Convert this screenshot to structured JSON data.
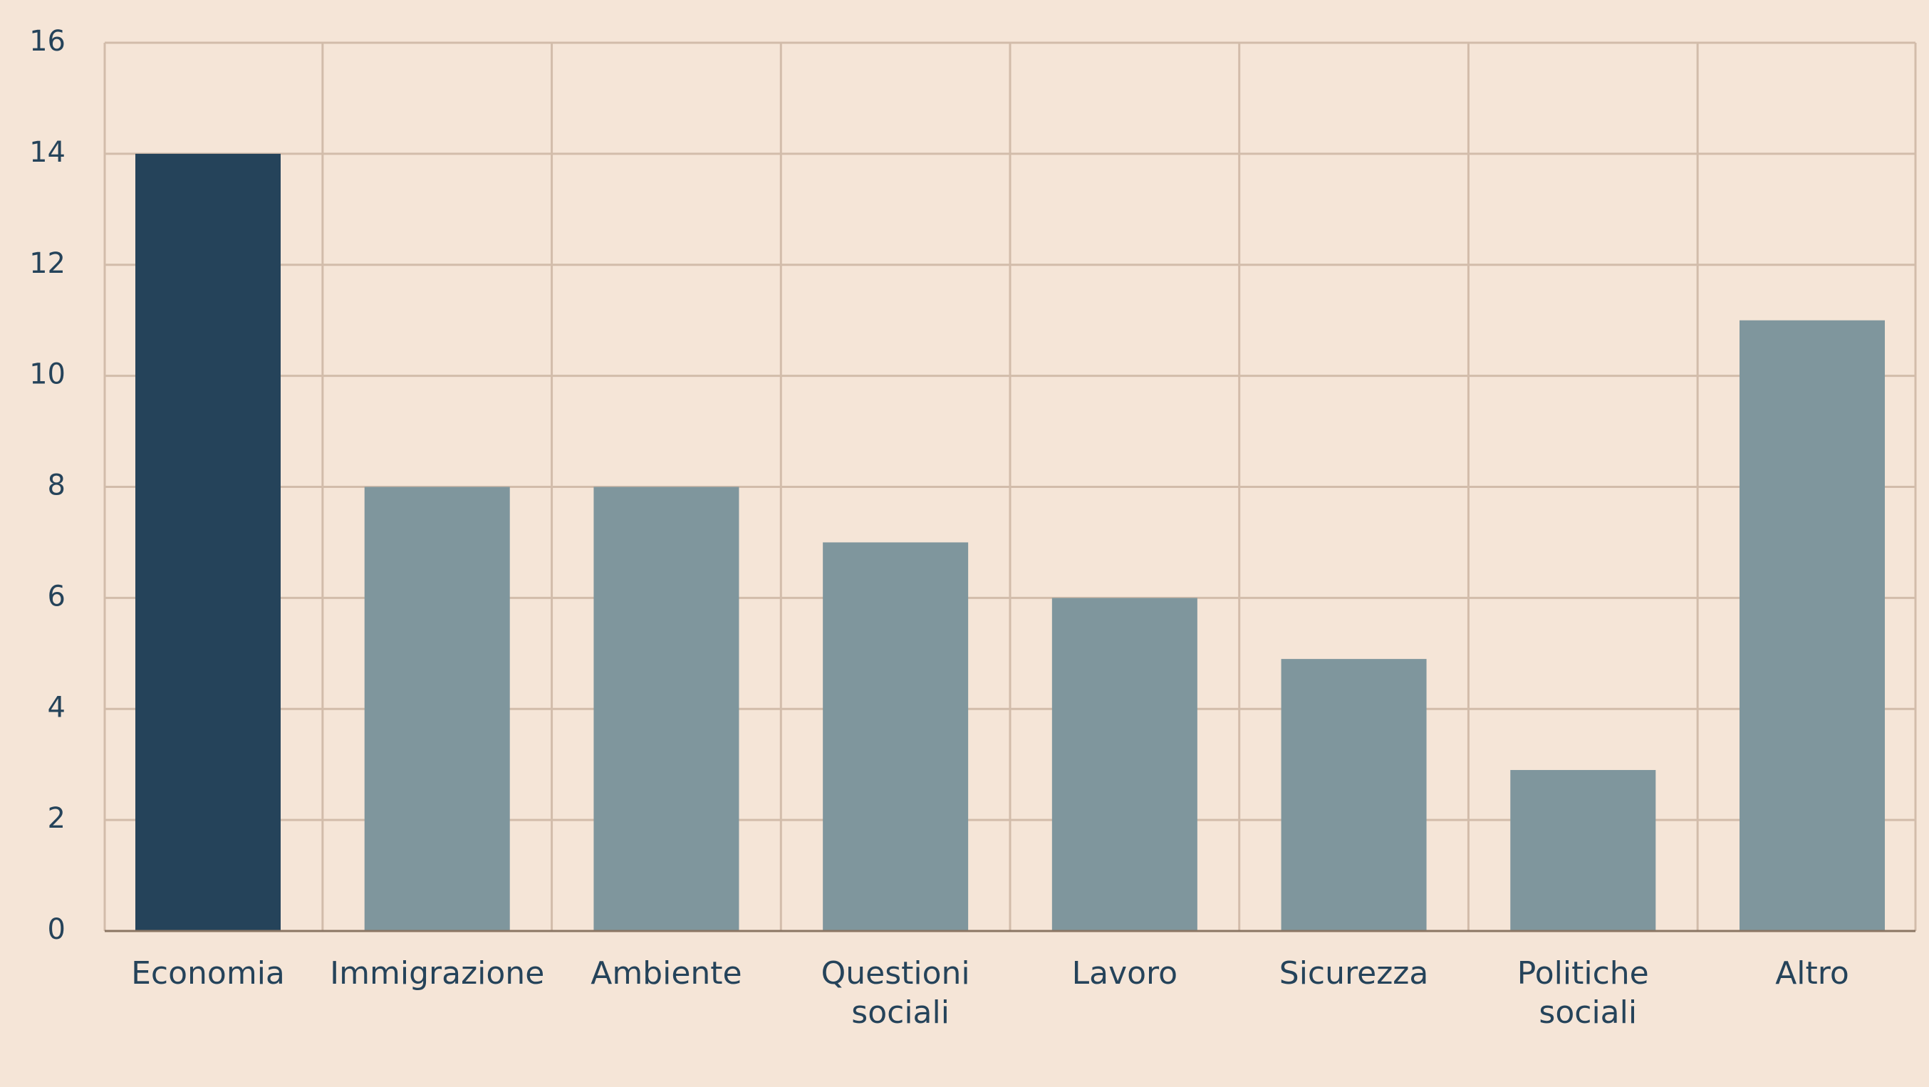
{
  "chart_data": {
    "type": "bar",
    "categories": [
      "Economia",
      "Immigrazione",
      "Ambiente",
      "Questioni sociali",
      "Lavoro",
      "Sicurezza",
      "Politiche sociali",
      "Altro"
    ],
    "values": [
      14,
      8,
      8,
      7,
      6,
      4.9,
      2.9,
      11
    ],
    "colors": [
      "#25435a",
      "#7f969d",
      "#7f969d",
      "#7f969d",
      "#7f969d",
      "#7f969d",
      "#7f969d",
      "#7f969d"
    ],
    "ylim": [
      0,
      16
    ],
    "yticks": [
      0,
      2,
      4,
      6,
      8,
      10,
      12,
      14,
      16
    ],
    "grid": true
  }
}
